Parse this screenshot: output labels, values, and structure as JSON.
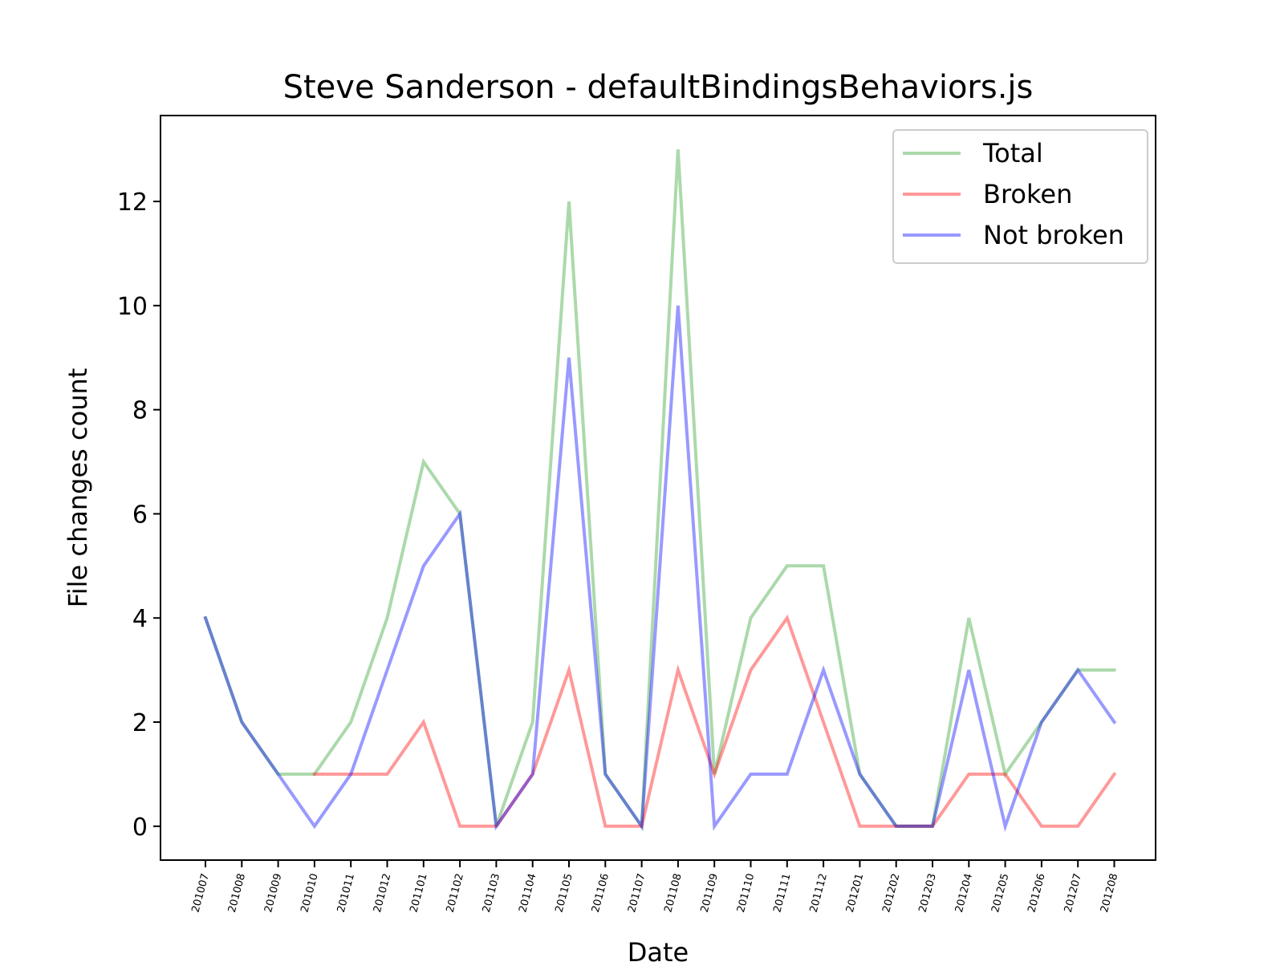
{
  "chart_data": {
    "type": "line",
    "title": "Steve Sanderson - defaultBindingsBehaviors.js",
    "xlabel": "Date",
    "ylabel": "File changes count",
    "categories": [
      "201007",
      "201008",
      "201009",
      "201010",
      "201011",
      "201012",
      "201101",
      "201102",
      "201103",
      "201104",
      "201105",
      "201106",
      "201107",
      "201108",
      "201109",
      "201110",
      "201111",
      "201112",
      "201201",
      "201202",
      "201203",
      "201204",
      "201205",
      "201206",
      "201207",
      "201208"
    ],
    "yticks": [
      0,
      2,
      4,
      6,
      8,
      10,
      12
    ],
    "ylim": [
      -0.65,
      13.65
    ],
    "grid": false,
    "legend_position": "top-right",
    "series": [
      {
        "name": "Total",
        "color": "#2ca02c",
        "values": [
          4,
          2,
          1,
          1,
          2,
          4,
          7,
          6,
          0,
          2,
          12,
          1,
          0,
          13,
          1,
          4,
          5,
          5,
          1,
          0,
          0,
          4,
          1,
          2,
          3,
          3
        ]
      },
      {
        "name": "Broken",
        "color": "#ff0000",
        "values": [
          null,
          null,
          null,
          1,
          1,
          1,
          2,
          0,
          0,
          1,
          3,
          0,
          0,
          3,
          1,
          3,
          4,
          2,
          0,
          0,
          0,
          1,
          1,
          0,
          0,
          1
        ]
      },
      {
        "name": "Not broken",
        "color": "#0000ff",
        "values": [
          4,
          2,
          1,
          0,
          1,
          3,
          5,
          6,
          0,
          1,
          9,
          1,
          0,
          10,
          0,
          1,
          1,
          3,
          1,
          0,
          0,
          3,
          0,
          2,
          3,
          2
        ]
      }
    ]
  }
}
